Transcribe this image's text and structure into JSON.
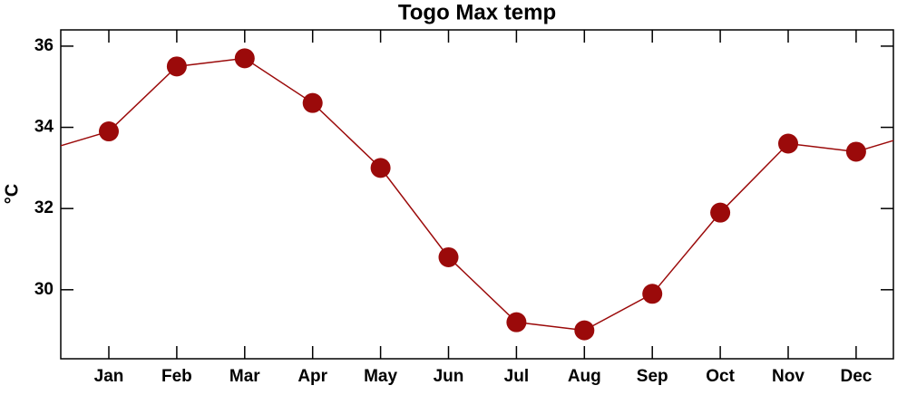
{
  "chart_data": {
    "type": "line",
    "title": "Togo Max temp",
    "y_label": "°C",
    "categories": [
      "Jan",
      "Feb",
      "Mar",
      "Apr",
      "May",
      "Jun",
      "Jul",
      "Aug",
      "Sep",
      "Oct",
      "Nov",
      "Dec"
    ],
    "series": [
      {
        "name": "Max temp",
        "color": "#9b0a0a",
        "values": [
          33.9,
          35.5,
          35.7,
          34.6,
          33.0,
          30.8,
          29.2,
          29.0,
          29.9,
          31.9,
          33.6,
          33.4
        ]
      }
    ],
    "ylim": [
      28.3,
      36.4
    ],
    "yticks": [
      30,
      32,
      34,
      36
    ]
  }
}
